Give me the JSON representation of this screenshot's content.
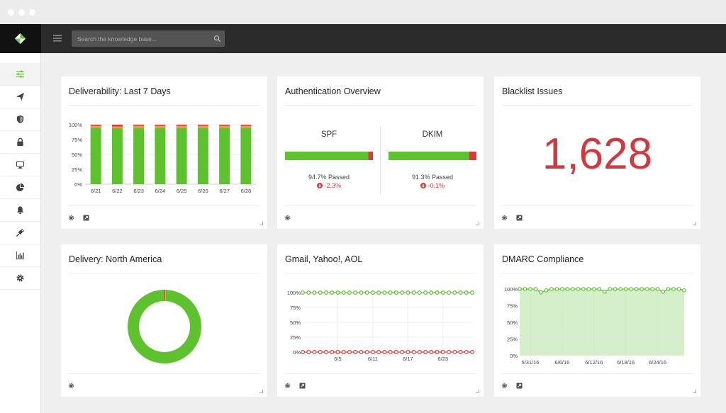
{
  "colors": {
    "green": "#5ec22f",
    "red": "#d93b3b",
    "orange": "#f0a040",
    "fill_green": "#d6efcb"
  },
  "header": {
    "search_placeholder": "Search the knowledge base..."
  },
  "sidebar": {
    "items": [
      {
        "icon": "sliders-icon",
        "active": true
      },
      {
        "icon": "send-icon"
      },
      {
        "icon": "shield-icon"
      },
      {
        "icon": "lock-icon"
      },
      {
        "icon": "monitor-icon"
      },
      {
        "icon": "pie-chart-icon"
      },
      {
        "icon": "bell-icon"
      },
      {
        "icon": "plug-icon"
      },
      {
        "icon": "bar-chart-icon"
      },
      {
        "icon": "gear-icon"
      }
    ]
  },
  "cards": {
    "deliverability": {
      "title": "Deliverability: Last 7 Days"
    },
    "auth": {
      "title": "Authentication Overview",
      "spf": {
        "name": "SPF",
        "passed_text": "94.7% Passed",
        "change": "-2.3%",
        "passed_pct": 94.7
      },
      "dkim": {
        "name": "DKIM",
        "passed_text": "91.3% Passed",
        "change": "-0.1%",
        "passed_pct": 91.3
      }
    },
    "blacklist": {
      "title": "Blacklist Issues",
      "value": "1,628"
    },
    "delivery_na": {
      "title": "Delivery: North America"
    },
    "gmail": {
      "title": "Gmail, Yahoo!, AOL"
    },
    "dmarc": {
      "title": "DMARC Compliance"
    }
  },
  "chart_data": [
    {
      "id": "deliverability",
      "type": "bar",
      "categories": [
        "6/21",
        "6/22",
        "6/23",
        "6/24",
        "6/25",
        "6/26",
        "6/27",
        "6/28"
      ],
      "series": [
        {
          "values": [
            95,
            94,
            95,
            95,
            95,
            95,
            95,
            95
          ]
        },
        {
          "values": [
            3,
            3,
            3,
            3,
            3,
            3,
            3,
            3
          ]
        },
        {
          "values": [
            2,
            3,
            2,
            2,
            2,
            2,
            2,
            2
          ]
        }
      ],
      "yticks": [
        "0%",
        "25%",
        "50%",
        "75%",
        "100%"
      ],
      "ylim": [
        0,
        100
      ]
    },
    {
      "id": "delivery_na",
      "type": "pie",
      "values": [
        99,
        0.6,
        0.4
      ]
    },
    {
      "id": "gmail",
      "type": "line",
      "xticks": [
        "6/5",
        "6/11",
        "6/17",
        "6/23"
      ],
      "yticks": [
        "0%",
        "25%",
        "50%",
        "75%",
        "100%"
      ],
      "ylim": [
        0,
        100
      ],
      "point_count": 30,
      "series": [
        {
          "values": [
            100,
            100,
            100,
            100,
            100,
            100,
            100,
            100,
            100,
            100,
            100,
            100,
            100,
            100,
            100,
            100,
            100,
            100,
            100,
            100,
            100,
            100,
            100,
            100,
            100,
            100,
            100,
            100,
            100,
            100
          ]
        },
        {
          "values": [
            0,
            0,
            0,
            0,
            0,
            0,
            0,
            0,
            0,
            0,
            0,
            0,
            0,
            0,
            0,
            0,
            0,
            0,
            0,
            0,
            0,
            0,
            0,
            0,
            0,
            0,
            0,
            0,
            0,
            0
          ]
        }
      ]
    },
    {
      "id": "dmarc",
      "type": "area",
      "xticks": [
        "5/31/16",
        "6/6/16",
        "6/12/16",
        "6/18/16",
        "6/24/16"
      ],
      "yticks": [
        "0%",
        "25%",
        "50%",
        "75%",
        "100%"
      ],
      "ylim": [
        0,
        100
      ],
      "series": [
        {
          "values": [
            100,
            100,
            100,
            100,
            95,
            98,
            100,
            100,
            100,
            100,
            100,
            100,
            100,
            100,
            100,
            100,
            96,
            100,
            100,
            100,
            100,
            100,
            100,
            100,
            100,
            100,
            100,
            96,
            100,
            100,
            100,
            98
          ]
        }
      ]
    }
  ]
}
